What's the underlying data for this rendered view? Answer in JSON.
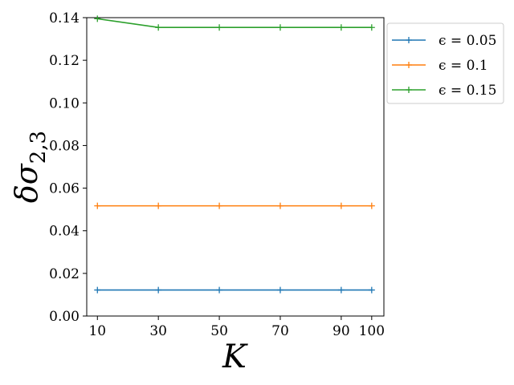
{
  "chart_data": {
    "type": "line",
    "x": [
      10,
      30,
      50,
      70,
      90,
      100
    ],
    "xticks": [
      "10",
      "30",
      "50",
      "70",
      "90",
      "100"
    ],
    "xlabel": "K",
    "ylabel": "δσ",
    "ylabel_sub": "2,3",
    "ylim": [
      0,
      0.14
    ],
    "yticks": [
      "0.00",
      "0.02",
      "0.04",
      "0.06",
      "0.08",
      "0.10",
      "0.12",
      "0.14"
    ],
    "grid": false,
    "legend_position": "outside-top-right",
    "series": [
      {
        "name": "ϵ = 0.05",
        "color": "#1f77b4",
        "marker": "plus",
        "values": [
          0.0122,
          0.0122,
          0.0122,
          0.0122,
          0.0122,
          0.0122
        ]
      },
      {
        "name": "ϵ = 0.1",
        "color": "#ff7f0e",
        "marker": "plus",
        "values": [
          0.0517,
          0.0517,
          0.0517,
          0.0517,
          0.0517,
          0.0517
        ]
      },
      {
        "name": "ϵ = 0.15",
        "color": "#2ca02c",
        "marker": "plus",
        "values": [
          0.1395,
          0.1354,
          0.1354,
          0.1354,
          0.1354,
          0.1354
        ]
      }
    ]
  }
}
